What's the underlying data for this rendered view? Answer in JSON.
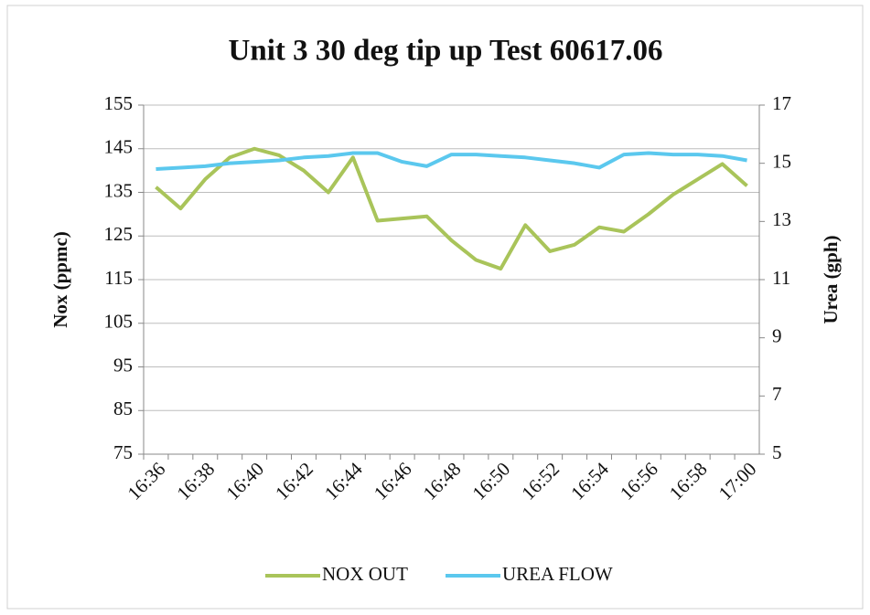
{
  "chart_data": {
    "type": "line",
    "title": "Unit 3  30 deg tip up  Test 60617.06",
    "y_label": "Nox (ppmc)",
    "y2_label": "Urea (gph)",
    "categories": [
      "16:36",
      null,
      "16:38",
      null,
      "16:40",
      null,
      "16:42",
      null,
      "16:44",
      null,
      "16:46",
      null,
      "16:48",
      null,
      "16:50",
      null,
      "16:52",
      null,
      "16:54",
      null,
      "16:56",
      null,
      "16:58",
      null,
      "17:00"
    ],
    "series": [
      {
        "name": "NOX OUT",
        "color": "#a9c45a",
        "values": [
          136.2,
          131.3,
          138,
          143,
          145,
          143.5,
          140,
          135,
          143,
          128.5,
          129,
          129.5,
          124,
          119.5,
          117.5,
          127.5,
          121.5,
          123,
          127,
          126,
          130,
          134.5,
          138,
          141.5,
          136.5
        ]
      },
      {
        "name": "UREA FLOW",
        "color": "#5bc8ee",
        "axis": "y2",
        "values": [
          14.8,
          14.85,
          14.9,
          15,
          15.05,
          15.1,
          15.2,
          15.25,
          15.35,
          15.35,
          15.05,
          14.9,
          15.3,
          15.3,
          15.25,
          15.2,
          15.1,
          15,
          14.85,
          15.3,
          15.35,
          15.3,
          15.3,
          15.25,
          15.1
        ]
      }
    ],
    "ylim": [
      75,
      155
    ],
    "yticks": [
      75,
      85,
      95,
      105,
      115,
      125,
      135,
      145,
      155
    ],
    "y2lim": [
      5,
      17
    ],
    "y2ticks": [
      5,
      7,
      9,
      11,
      13,
      15,
      17
    ],
    "grid": true,
    "legend": "bottom"
  }
}
